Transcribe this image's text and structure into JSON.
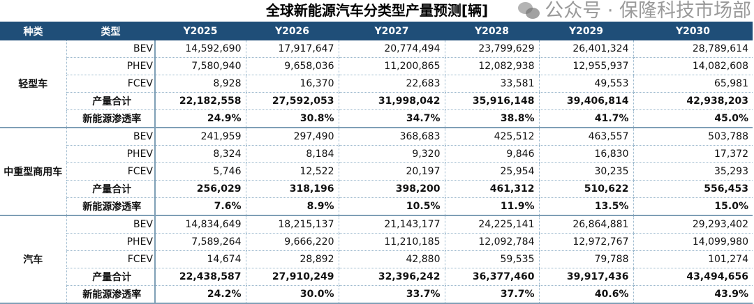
{
  "title": "全球新能源汽车分类型产量预测[辆]",
  "header": [
    "种类",
    "类型",
    "Y2025",
    "Y2026",
    "Y2027",
    "Y2028",
    "Y2029",
    "Y2030"
  ],
  "colors": {
    "header_bg": "#1F4E78",
    "header_text": "#FFFFFF",
    "grid": "#9AB7CC"
  },
  "groups": [
    {
      "name": "轻型车",
      "rows": [
        {
          "label": "BEV",
          "values": [
            "14,592,690",
            "17,917,647",
            "20,774,494",
            "23,799,629",
            "26,401,324",
            "28,789,614"
          ]
        },
        {
          "label": "PHEV",
          "values": [
            "7,580,940",
            "9,658,036",
            "11,200,865",
            "12,082,938",
            "12,955,937",
            "14,082,608"
          ]
        },
        {
          "label": "FCEV",
          "values": [
            "8,928",
            "16,370",
            "22,683",
            "33,581",
            "49,553",
            "65,981"
          ]
        },
        {
          "label": "产量合计",
          "values": [
            "22,182,558",
            "27,592,053",
            "31,998,042",
            "35,916,148",
            "39,406,814",
            "42,938,203"
          ]
        },
        {
          "label": "新能源渗透率",
          "values": [
            "24.9%",
            "30.8%",
            "34.7%",
            "38.8%",
            "41.7%",
            "45.0%"
          ]
        }
      ]
    },
    {
      "name": "中重型商用车",
      "rows": [
        {
          "label": "BEV",
          "values": [
            "241,959",
            "297,490",
            "368,683",
            "425,512",
            "463,557",
            "503,788"
          ]
        },
        {
          "label": "PHEV",
          "values": [
            "8,324",
            "8,184",
            "9,320",
            "9,846",
            "16,830",
            "17,372"
          ]
        },
        {
          "label": "FCEV",
          "values": [
            "5,746",
            "12,522",
            "20,197",
            "25,954",
            "30,235",
            "35,293"
          ]
        },
        {
          "label": "产量合计",
          "values": [
            "256,029",
            "318,196",
            "398,200",
            "461,312",
            "510,622",
            "556,453"
          ]
        },
        {
          "label": "新能源渗透率",
          "values": [
            "7.6%",
            "8.9%",
            "10.5%",
            "11.9%",
            "13.5%",
            "15.0%"
          ]
        }
      ]
    },
    {
      "name": "汽车",
      "rows": [
        {
          "label": "BEV",
          "values": [
            "14,834,649",
            "18,215,137",
            "21,143,177",
            "24,225,141",
            "26,864,881",
            "29,293,402"
          ]
        },
        {
          "label": "PHEV",
          "values": [
            "7,589,264",
            "9,666,220",
            "11,210,185",
            "12,092,784",
            "12,972,767",
            "14,099,980"
          ]
        },
        {
          "label": "FCEV",
          "values": [
            "14,674",
            "28,892",
            "42,880",
            "59,535",
            "79,788",
            "101,274"
          ]
        },
        {
          "label": "产量合计",
          "values": [
            "22,438,587",
            "27,910,249",
            "32,396,242",
            "36,377,460",
            "39,917,436",
            "43,494,656"
          ]
        },
        {
          "label": "新能源渗透率",
          "values": [
            "24.2%",
            "30.0%",
            "33.7%",
            "37.7%",
            "40.6%",
            "43.9%"
          ]
        }
      ]
    }
  ],
  "watermark": {
    "text": "公众号 · 保隆科技市场部",
    "icon": "wechat-icon"
  }
}
